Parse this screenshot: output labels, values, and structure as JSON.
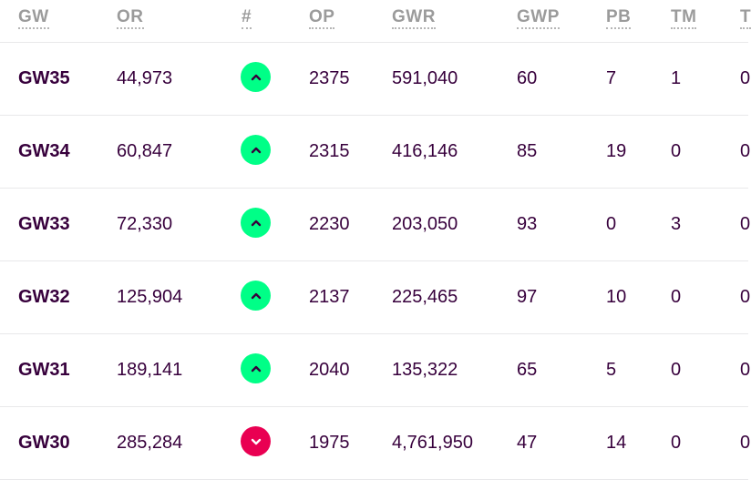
{
  "headers": [
    "GW",
    "OR",
    "#",
    "OP",
    "GWR",
    "GWP",
    "PB",
    "TM",
    "T"
  ],
  "rows": [
    {
      "gw": "GW35",
      "or": "44,973",
      "trend": "up",
      "op": "2375",
      "gwr": "591,040",
      "gwp": "60",
      "pb": "7",
      "tm": "1",
      "tc": "0"
    },
    {
      "gw": "GW34",
      "or": "60,847",
      "trend": "up",
      "op": "2315",
      "gwr": "416,146",
      "gwp": "85",
      "pb": "19",
      "tm": "0",
      "tc": "0"
    },
    {
      "gw": "GW33",
      "or": "72,330",
      "trend": "up",
      "op": "2230",
      "gwr": "203,050",
      "gwp": "93",
      "pb": "0",
      "tm": "3",
      "tc": "0"
    },
    {
      "gw": "GW32",
      "or": "125,904",
      "trend": "up",
      "op": "2137",
      "gwr": "225,465",
      "gwp": "97",
      "pb": "10",
      "tm": "0",
      "tc": "0"
    },
    {
      "gw": "GW31",
      "or": "189,141",
      "trend": "up",
      "op": "2040",
      "gwr": "135,322",
      "gwp": "65",
      "pb": "5",
      "tm": "0",
      "tc": "0"
    },
    {
      "gw": "GW30",
      "or": "285,284",
      "trend": "down",
      "op": "1975",
      "gwr": "4,761,950",
      "gwp": "47",
      "pb": "14",
      "tm": "0",
      "tc": "0"
    }
  ],
  "icons": {
    "up": "chevron-up-icon",
    "down": "chevron-down-icon"
  },
  "colors": {
    "up": "#00ff87",
    "down": "#e90052",
    "text": "#37003c",
    "header": "#9b9b9b"
  }
}
